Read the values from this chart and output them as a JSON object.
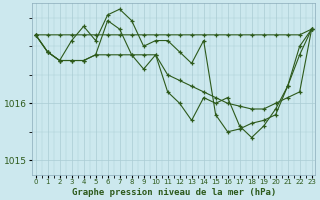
{
  "title": "Graphe pression niveau de la mer (hPa)",
  "xlabel_ticks": [
    "0",
    "1",
    "2",
    "3",
    "4",
    "5",
    "6",
    "7",
    "8",
    "9",
    "10",
    "11",
    "12",
    "13",
    "14",
    "15",
    "16",
    "17",
    "18",
    "19",
    "20",
    "21",
    "22",
    "23"
  ],
  "ylim": [
    1014.75,
    1017.75
  ],
  "yticks": [
    1015,
    1016
  ],
  "bg_color": "#cce8ee",
  "line_color": "#2d5a1b",
  "grid_color": "#aaccd4",
  "series": {
    "line1": [
      1017.2,
      1017.2,
      1017.2,
      1017.2,
      1017.2,
      1017.2,
      1017.2,
      1017.2,
      1017.2,
      1017.2,
      1017.2,
      1017.2,
      1017.2,
      1017.2,
      1017.2,
      1017.2,
      1017.2,
      1017.2,
      1017.2,
      1017.2,
      1017.2,
      1017.2,
      1017.2,
      1017.3
    ],
    "line2": [
      1017.2,
      1016.9,
      1016.75,
      1016.75,
      1016.75,
      1016.85,
      1016.85,
      1016.85,
      1016.85,
      1016.85,
      1016.85,
      1016.5,
      1016.4,
      1016.3,
      1016.2,
      1016.1,
      1016.0,
      1015.95,
      1015.9,
      1015.9,
      1016.0,
      1016.1,
      1016.2,
      1017.3
    ],
    "line3": [
      1017.2,
      1016.9,
      1016.75,
      1016.75,
      1016.75,
      1016.85,
      1017.45,
      1017.3,
      1016.85,
      1016.6,
      1016.85,
      1016.2,
      1016.0,
      1015.7,
      1016.1,
      1016.0,
      1016.1,
      1015.6,
      1015.4,
      1015.6,
      1015.9,
      1016.3,
      1016.85,
      1017.3
    ],
    "line4": [
      1017.2,
      1016.9,
      1016.75,
      1017.1,
      1017.35,
      1017.1,
      1017.55,
      1017.65,
      1017.45,
      1017.0,
      1017.1,
      1017.1,
      1016.9,
      1016.7,
      1017.1,
      1015.8,
      1015.5,
      1015.55,
      1015.65,
      1015.7,
      1015.8,
      1016.3,
      1017.0,
      1017.3
    ]
  }
}
